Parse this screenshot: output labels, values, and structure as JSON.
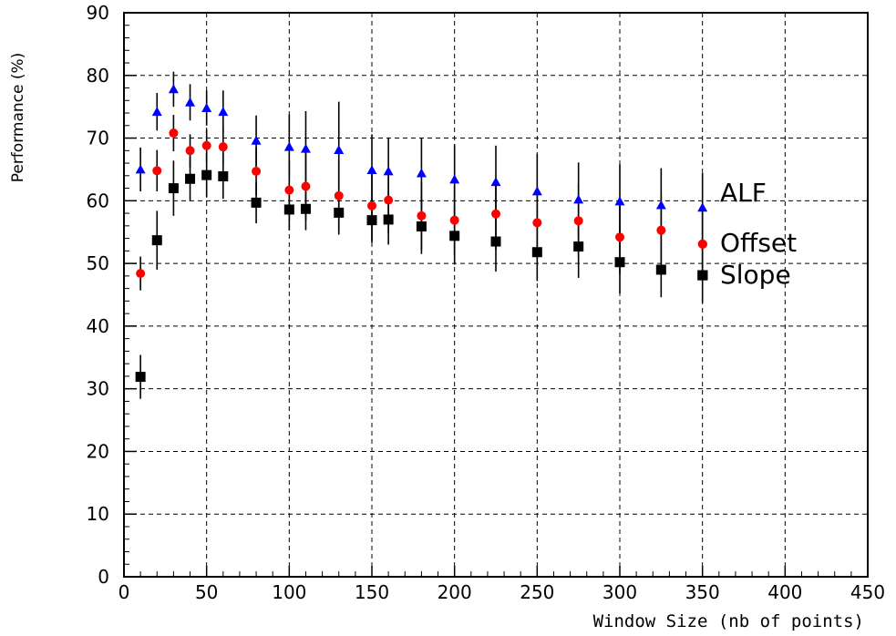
{
  "chart_data": {
    "type": "scatter",
    "title": "",
    "xlabel": "Window Size (nb of points)",
    "ylabel": "Performance (%)",
    "xlim": [
      0,
      450
    ],
    "ylim": [
      0,
      90
    ],
    "x_ticks": [
      "0",
      "50",
      "100",
      "150",
      "200",
      "250",
      "300",
      "350",
      "400",
      "450"
    ],
    "y_ticks": [
      "0",
      "10",
      "20",
      "30",
      "40",
      "50",
      "60",
      "70",
      "80",
      "90"
    ],
    "grid": "dashed",
    "legend_position": "right",
    "series": [
      {
        "name": "ALF",
        "marker": "triangle",
        "color": "#0000ff",
        "points": [
          {
            "x": 10,
            "y": 65.0,
            "err": 3.5
          },
          {
            "x": 20,
            "y": 74.2,
            "err": 3.0
          },
          {
            "x": 30,
            "y": 77.8,
            "err": 2.8
          },
          {
            "x": 40,
            "y": 75.7,
            "err": 2.9
          },
          {
            "x": 50,
            "y": 74.8,
            "err": 2.8
          },
          {
            "x": 60,
            "y": 74.2,
            "err": 3.4
          },
          {
            "x": 80,
            "y": 69.6,
            "err": 4.0
          },
          {
            "x": 100,
            "y": 68.6,
            "err": 5.2
          },
          {
            "x": 110,
            "y": 68.3,
            "err": 6.0
          },
          {
            "x": 130,
            "y": 68.1,
            "err": 7.7
          },
          {
            "x": 150,
            "y": 64.9,
            "err": 5.7
          },
          {
            "x": 160,
            "y": 64.7,
            "err": 5.4
          },
          {
            "x": 180,
            "y": 64.4,
            "err": 5.6
          },
          {
            "x": 200,
            "y": 63.4,
            "err": 5.6
          },
          {
            "x": 225,
            "y": 63.0,
            "err": 5.8
          },
          {
            "x": 250,
            "y": 61.5,
            "err": 6.0
          },
          {
            "x": 275,
            "y": 60.2,
            "err": 5.9
          },
          {
            "x": 300,
            "y": 59.9,
            "err": 5.9
          },
          {
            "x": 325,
            "y": 59.3,
            "err": 5.9
          },
          {
            "x": 350,
            "y": 58.9,
            "err": 5.5
          }
        ]
      },
      {
        "name": "Offset",
        "marker": "circle",
        "color": "#ff0000",
        "points": [
          {
            "x": 10,
            "y": 48.4,
            "err": 2.7
          },
          {
            "x": 20,
            "y": 64.8,
            "err": 3.3
          },
          {
            "x": 30,
            "y": 70.8,
            "err": 2.9
          },
          {
            "x": 40,
            "y": 68.0,
            "err": 2.6
          },
          {
            "x": 50,
            "y": 68.8,
            "err": 2.6
          },
          {
            "x": 60,
            "y": 68.6,
            "err": 3.0
          },
          {
            "x": 80,
            "y": 64.7,
            "err": 3.8
          },
          {
            "x": 100,
            "y": 61.7,
            "err": 4.8
          },
          {
            "x": 110,
            "y": 62.3,
            "err": 5.4
          },
          {
            "x": 130,
            "y": 60.8,
            "err": 5.6
          },
          {
            "x": 150,
            "y": 59.2,
            "err": 5.5
          },
          {
            "x": 160,
            "y": 60.1,
            "err": 5.3
          },
          {
            "x": 180,
            "y": 57.6,
            "err": 5.4
          },
          {
            "x": 200,
            "y": 56.9,
            "err": 5.5
          },
          {
            "x": 225,
            "y": 57.9,
            "err": 5.7
          },
          {
            "x": 250,
            "y": 56.5,
            "err": 5.8
          },
          {
            "x": 275,
            "y": 56.8,
            "err": 5.9
          },
          {
            "x": 300,
            "y": 54.2,
            "err": 5.9
          },
          {
            "x": 325,
            "y": 55.3,
            "err": 5.8
          },
          {
            "x": 350,
            "y": 53.1,
            "err": 5.6
          }
        ]
      },
      {
        "name": "Slope",
        "marker": "square",
        "color": "#000000",
        "points": [
          {
            "x": 10,
            "y": 31.9,
            "err": 3.5
          },
          {
            "x": 20,
            "y": 53.7,
            "err": 4.7
          },
          {
            "x": 30,
            "y": 62.0,
            "err": 4.4
          },
          {
            "x": 40,
            "y": 63.5,
            "err": 3.6
          },
          {
            "x": 50,
            "y": 64.1,
            "err": 3.5
          },
          {
            "x": 60,
            "y": 63.9,
            "err": 3.6
          },
          {
            "x": 80,
            "y": 59.7,
            "err": 3.3
          },
          {
            "x": 100,
            "y": 58.6,
            "err": 3.3
          },
          {
            "x": 110,
            "y": 58.7,
            "err": 3.4
          },
          {
            "x": 130,
            "y": 58.1,
            "err": 3.5
          },
          {
            "x": 150,
            "y": 56.9,
            "err": 3.6
          },
          {
            "x": 160,
            "y": 57.0,
            "err": 4.0
          },
          {
            "x": 180,
            "y": 55.9,
            "err": 4.4
          },
          {
            "x": 200,
            "y": 54.4,
            "err": 4.6
          },
          {
            "x": 225,
            "y": 53.5,
            "err": 4.8
          },
          {
            "x": 250,
            "y": 51.8,
            "err": 4.6
          },
          {
            "x": 275,
            "y": 52.7,
            "err": 5.0
          },
          {
            "x": 300,
            "y": 50.2,
            "err": 5.0
          },
          {
            "x": 325,
            "y": 49.0,
            "err": 4.4
          },
          {
            "x": 350,
            "y": 48.1,
            "err": 4.4
          }
        ]
      }
    ]
  }
}
